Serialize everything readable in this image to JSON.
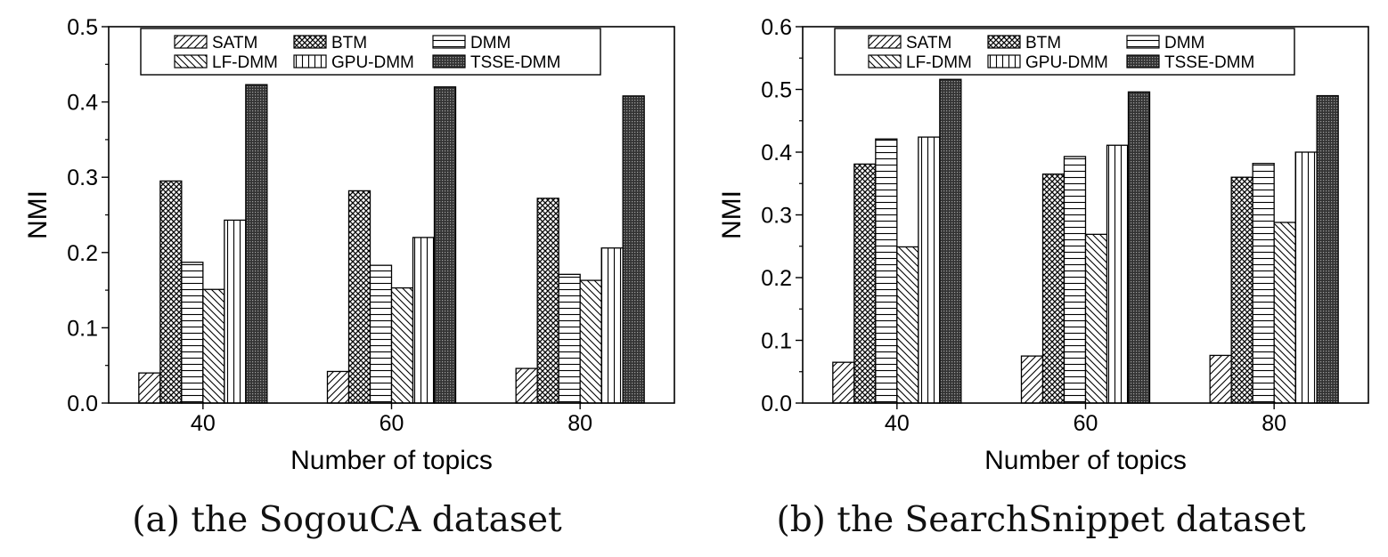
{
  "chart_data": [
    {
      "type": "bar",
      "caption": "(a) the SogouCA dataset",
      "xlabel": "Number of topics",
      "ylabel": "NMI",
      "categories": [
        "40",
        "60",
        "80"
      ],
      "ylim": [
        0,
        0.5
      ],
      "yticks": [
        "0.0",
        "0.1",
        "0.2",
        "0.3",
        "0.4",
        "0.5"
      ],
      "legend_position": "top",
      "series": [
        {
          "name": "SATM",
          "values": [
            0.04,
            0.042,
            0.046
          ]
        },
        {
          "name": "BTM",
          "values": [
            0.295,
            0.282,
            0.272
          ]
        },
        {
          "name": "DMM",
          "values": [
            0.187,
            0.183,
            0.171
          ]
        },
        {
          "name": "LF-DMM",
          "values": [
            0.151,
            0.153,
            0.163
          ]
        },
        {
          "name": "GPU-DMM",
          "values": [
            0.243,
            0.22,
            0.206
          ]
        },
        {
          "name": "TSSE-DMM",
          "values": [
            0.423,
            0.42,
            0.408
          ]
        }
      ]
    },
    {
      "type": "bar",
      "caption": "(b) the SearchSnippet dataset",
      "xlabel": "Number of topics",
      "ylabel": "NMI",
      "categories": [
        "40",
        "60",
        "80"
      ],
      "ylim": [
        0,
        0.6
      ],
      "yticks": [
        "0.0",
        "0.1",
        "0.2",
        "0.3",
        "0.4",
        "0.5",
        "0.6"
      ],
      "legend_position": "top",
      "series": [
        {
          "name": "SATM",
          "values": [
            0.065,
            0.075,
            0.076
          ]
        },
        {
          "name": "BTM",
          "values": [
            0.381,
            0.365,
            0.36
          ]
        },
        {
          "name": "DMM",
          "values": [
            0.421,
            0.393,
            0.382
          ]
        },
        {
          "name": "LF-DMM",
          "values": [
            0.249,
            0.269,
            0.288
          ]
        },
        {
          "name": "GPU-DMM",
          "values": [
            0.424,
            0.411,
            0.4
          ]
        },
        {
          "name": "TSSE-DMM",
          "values": [
            0.516,
            0.496,
            0.49
          ]
        }
      ]
    }
  ],
  "patterns": {
    "SATM": "diag-right",
    "BTM": "crosshatch",
    "DMM": "horizontal",
    "LF-DMM": "diag-left",
    "GPU-DMM": "vertical",
    "TSSE-DMM": "dense-grid"
  },
  "colors": {
    "ink": "#000000",
    "background": "#ffffff"
  }
}
